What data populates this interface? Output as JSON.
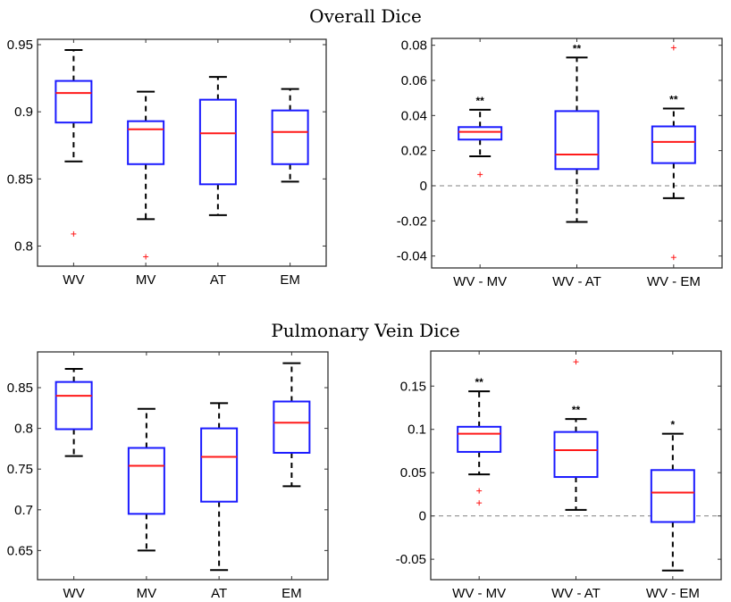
{
  "titles": {
    "top": "Overall Dice",
    "bottom": "Pulmonary Vein Dice"
  },
  "colors": {
    "box": "#1a1aff",
    "median": "#ff1a1a",
    "whisker": "#000000",
    "outlier": "#ff1a1a",
    "zero_line": "#808080",
    "axis": "#333333"
  },
  "chart_data": [
    {
      "id": "overall-methods",
      "type": "box",
      "group_title": "Overall Dice",
      "xlabel": "",
      "ylabel": "",
      "categories": [
        "WV",
        "MV",
        "AT",
        "EM"
      ],
      "ylim": [
        0.785,
        0.954
      ],
      "yticks": [
        0.8,
        0.85,
        0.9,
        0.95
      ],
      "ytick_labels": [
        "0.8",
        "0.85",
        "0.9",
        "0.95"
      ],
      "zero_line": false,
      "boxes": [
        {
          "label": "WV",
          "whisker_low": 0.863,
          "q1": 0.892,
          "median": 0.914,
          "q3": 0.923,
          "whisker_high": 0.946,
          "outliers": [
            0.809
          ],
          "significance": ""
        },
        {
          "label": "MV",
          "whisker_low": 0.82,
          "q1": 0.861,
          "median": 0.887,
          "q3": 0.893,
          "whisker_high": 0.915,
          "outliers": [
            0.792
          ],
          "significance": ""
        },
        {
          "label": "AT",
          "whisker_low": 0.823,
          "q1": 0.846,
          "median": 0.884,
          "q3": 0.909,
          "whisker_high": 0.926,
          "outliers": [],
          "significance": ""
        },
        {
          "label": "EM",
          "whisker_low": 0.848,
          "q1": 0.861,
          "median": 0.885,
          "q3": 0.901,
          "whisker_high": 0.917,
          "outliers": [],
          "significance": ""
        }
      ]
    },
    {
      "id": "overall-differences",
      "type": "box",
      "group_title": "Overall Dice",
      "xlabel": "",
      "ylabel": "",
      "categories": [
        "WV - MV",
        "WV - AT",
        "WV - EM"
      ],
      "ylim": [
        -0.0468,
        0.0839
      ],
      "yticks": [
        -0.04,
        -0.02,
        0,
        0.02,
        0.04,
        0.06,
        0.08
      ],
      "ytick_labels": [
        "-0.04",
        "-0.02",
        "0",
        "0.02",
        "0.04",
        "0.06",
        "0.08"
      ],
      "zero_line": true,
      "boxes": [
        {
          "label": "WV - MV",
          "whisker_low": 0.0168,
          "q1": 0.0263,
          "median": 0.0307,
          "q3": 0.0334,
          "whisker_high": 0.0433,
          "outliers": [
            0.0064
          ],
          "significance": "**"
        },
        {
          "label": "WV - AT",
          "whisker_low": -0.0206,
          "q1": 0.0095,
          "median": 0.0178,
          "q3": 0.0425,
          "whisker_high": 0.073,
          "outliers": [],
          "significance": "**"
        },
        {
          "label": "WV - EM",
          "whisker_low": -0.0071,
          "q1": 0.0129,
          "median": 0.025,
          "q3": 0.0338,
          "whisker_high": 0.044,
          "outliers": [
            0.0786,
            -0.0408
          ],
          "significance": "**"
        }
      ]
    },
    {
      "id": "pv-methods",
      "type": "box",
      "group_title": "Pulmonary Vein Dice",
      "xlabel": "",
      "ylabel": "",
      "categories": [
        "WV",
        "MV",
        "AT",
        "EM"
      ],
      "ylim": [
        0.6142,
        0.8939
      ],
      "yticks": [
        0.65,
        0.7,
        0.75,
        0.8,
        0.85
      ],
      "ytick_labels": [
        "0.65",
        "0.7",
        "0.75",
        "0.8",
        "0.85"
      ],
      "zero_line": false,
      "boxes": [
        {
          "label": "WV",
          "whisker_low": 0.766,
          "q1": 0.799,
          "median": 0.84,
          "q3": 0.857,
          "whisker_high": 0.873,
          "outliers": [],
          "significance": ""
        },
        {
          "label": "MV",
          "whisker_low": 0.65,
          "q1": 0.695,
          "median": 0.754,
          "q3": 0.776,
          "whisker_high": 0.824,
          "outliers": [],
          "significance": ""
        },
        {
          "label": "AT",
          "whisker_low": 0.626,
          "q1": 0.71,
          "median": 0.765,
          "q3": 0.8,
          "whisker_high": 0.831,
          "outliers": [],
          "significance": ""
        },
        {
          "label": "EM",
          "whisker_low": 0.729,
          "q1": 0.77,
          "median": 0.807,
          "q3": 0.833,
          "whisker_high": 0.88,
          "outliers": [],
          "significance": ""
        }
      ]
    },
    {
      "id": "pv-differences",
      "type": "box",
      "group_title": "Pulmonary Vein Dice",
      "xlabel": "",
      "ylabel": "",
      "categories": [
        "WV - MV",
        "WV - AT",
        "WV - EM"
      ],
      "ylim": [
        -0.0736,
        0.1905
      ],
      "yticks": [
        -0.05,
        0,
        0.05,
        0.1,
        0.15
      ],
      "ytick_labels": [
        "-0.05",
        "0",
        "0.05",
        "0.1",
        "0.15"
      ],
      "zero_line": true,
      "boxes": [
        {
          "label": "WV - MV",
          "whisker_low": 0.048,
          "q1": 0.074,
          "median": 0.095,
          "q3": 0.103,
          "whisker_high": 0.144,
          "outliers": [
            0.029,
            0.015
          ],
          "significance": "**"
        },
        {
          "label": "WV - AT",
          "whisker_low": 0.007,
          "q1": 0.045,
          "median": 0.076,
          "q3": 0.097,
          "whisker_high": 0.112,
          "outliers": [
            0.178
          ],
          "significance": "**"
        },
        {
          "label": "WV - EM",
          "whisker_low": -0.063,
          "q1": -0.007,
          "median": 0.027,
          "q3": 0.053,
          "whisker_high": 0.095,
          "outliers": [],
          "significance": "*"
        }
      ]
    }
  ]
}
